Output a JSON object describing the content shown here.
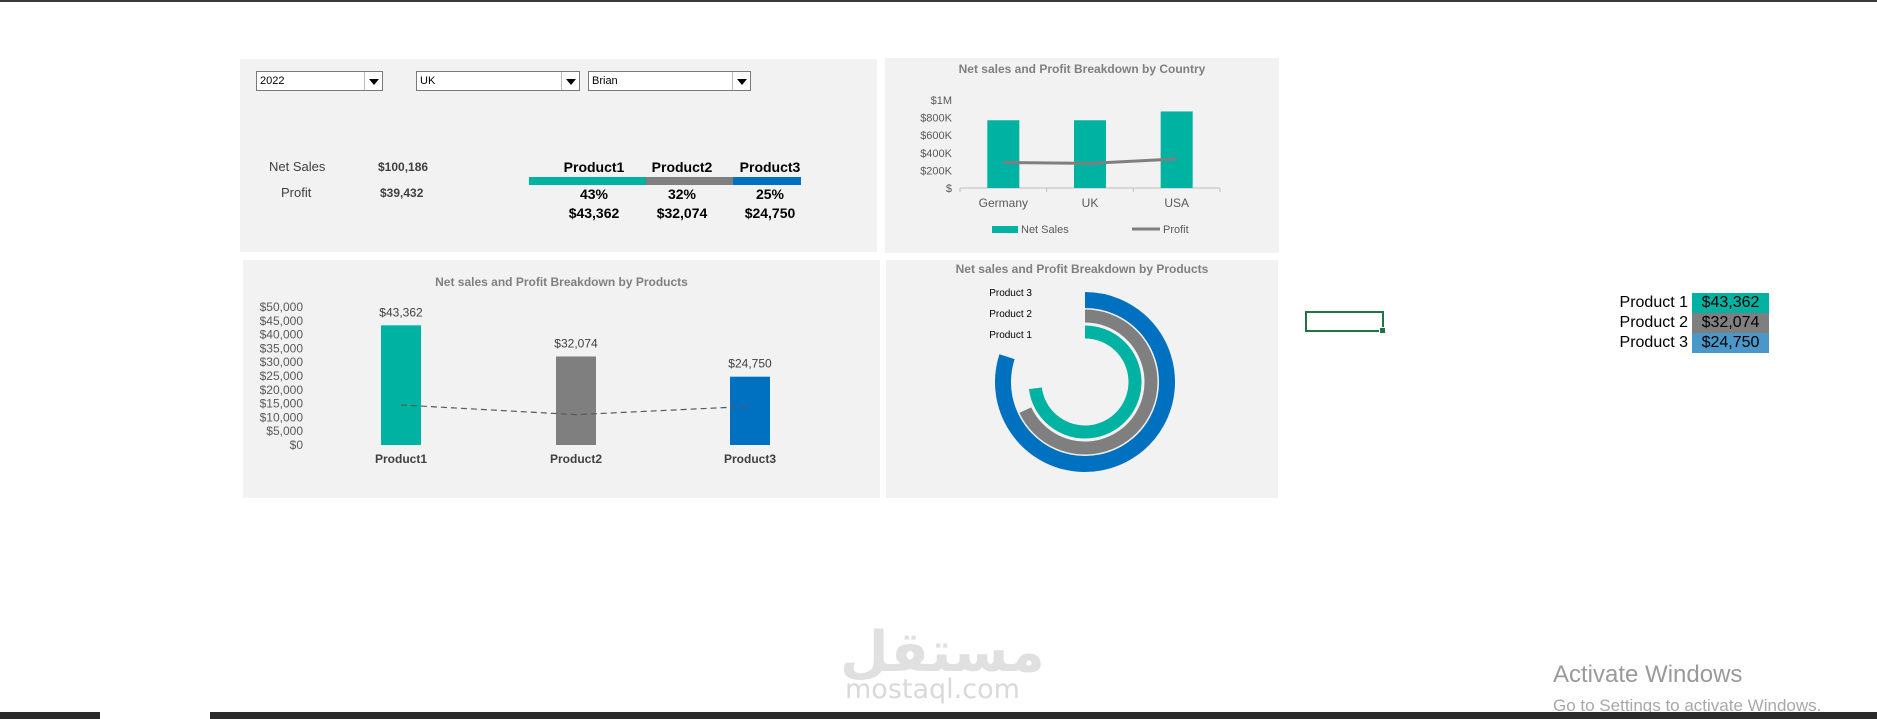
{
  "filters": {
    "year": "2022",
    "country": "UK",
    "salesperson": "Brian"
  },
  "kpis": {
    "net_sales_label": "Net Sales",
    "net_sales_value": "$100,186",
    "profit_label": "Profit",
    "profit_value": "$39,432"
  },
  "products": [
    {
      "name": "Product1",
      "share": "43%",
      "amount": "$43,362",
      "share_value": 43,
      "color": "#00b2a2"
    },
    {
      "name": "Product2",
      "share": "32%",
      "amount": "$32,074",
      "share_value": 32,
      "color": "#7f7f7f"
    },
    {
      "name": "Product3",
      "share": "25%",
      "amount": "$24,750",
      "share_value": 25,
      "color": "#0070c0"
    }
  ],
  "chart_data": [
    {
      "type": "bar",
      "title": "Net sales and Profit Breakdown by Country",
      "categories": [
        "Germany",
        "UK",
        "USA"
      ],
      "series": [
        {
          "name": "Net Sales",
          "type": "bar",
          "values": [
            770000,
            770000,
            870000
          ],
          "color": "#00b2a2"
        },
        {
          "name": "Profit",
          "type": "line",
          "values": [
            290000,
            280000,
            330000
          ],
          "color": "#7f7f7f"
        }
      ],
      "y_ticks": [
        "$",
        "$200K",
        "$400K",
        "$600K",
        "$800K",
        "$1M"
      ],
      "ylim": [
        0,
        1000000
      ],
      "legend": "bottom"
    },
    {
      "type": "bar",
      "title": "Net sales and Profit Breakdown by Products",
      "categories": [
        "Product1",
        "Product2",
        "Product3"
      ],
      "series": [
        {
          "name": "Net Sales",
          "type": "bar",
          "values": [
            43362,
            32074,
            24750
          ],
          "labels": [
            "$43,362",
            "$32,074",
            "$24,750"
          ],
          "colors": [
            "#00b2a2",
            "#7f7f7f",
            "#0070c0"
          ]
        },
        {
          "name": "Profit",
          "type": "line",
          "style": "dashed",
          "values": [
            14500,
            11000,
            14000
          ],
          "color": "#595959"
        }
      ],
      "y_ticks": [
        "$0",
        "$5,000",
        "$10,000",
        "$15,000",
        "$20,000",
        "$25,000",
        "$30,000",
        "$35,000",
        "$40,000",
        "$45,000",
        "$50,000"
      ],
      "ylim": [
        0,
        50000
      ]
    },
    {
      "type": "pie",
      "subtype": "radial-bar",
      "title": "Net sales and Profit Breakdown by Products",
      "categories": [
        "Product 3",
        "Product 2",
        "Product 1"
      ],
      "values": [
        80,
        68,
        73
      ],
      "colors": [
        "#0070c0",
        "#7f7f7f",
        "#00b2a2"
      ]
    }
  ],
  "side_table": [
    {
      "label": "Product 1",
      "value": "$43,362",
      "color": "#00b2a2"
    },
    {
      "label": "Product 2",
      "value": "$32,074",
      "color": "#7f7f7f"
    },
    {
      "label": "Product 3",
      "value": "$24,750",
      "color": "#4a97c9"
    }
  ],
  "watermark": {
    "arabic": "مستقل",
    "latin": "mostaql.com"
  },
  "activation": {
    "title": "Activate Windows",
    "subtitle": "Go to Settings to activate Windows."
  }
}
